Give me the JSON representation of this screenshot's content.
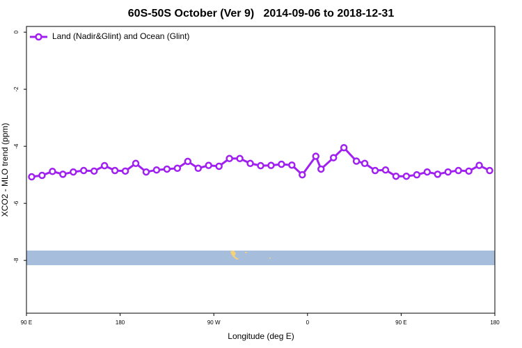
{
  "chart_data": {
    "type": "line",
    "title": "60S-50S October (Ver 9)   2014-09-06 to 2018-12-31",
    "x_label": "Longitude (deg E)",
    "y_label": "XCO2 - MLO trend (ppm)",
    "xlim": [
      90,
      540
    ],
    "ylim": [
      -9.85,
      0.2
    ],
    "xticks": [
      {
        "value": 90,
        "label": "90 E"
      },
      {
        "value": 180,
        "label": "180"
      },
      {
        "value": 270,
        "label": "90 W"
      },
      {
        "value": 360,
        "label": "0"
      },
      {
        "value": 450,
        "label": "90 E"
      },
      {
        "value": 540,
        "label": "180"
      }
    ],
    "yticks": [
      0,
      -2,
      -4,
      -6,
      -8
    ],
    "legend": "top-left",
    "x": [
      95,
      105,
      115,
      125,
      135,
      145,
      155,
      165,
      175,
      185,
      195,
      205,
      215,
      225,
      235,
      245,
      255,
      265,
      275,
      285,
      295,
      305,
      315,
      325,
      335,
      345,
      355,
      368,
      373,
      385,
      395,
      407,
      415,
      425,
      435,
      445,
      455,
      465,
      475,
      485,
      495,
      505,
      515,
      525,
      535
    ],
    "series": [
      {
        "name": "Land (Nadir&Glint) and Ocean (Glint)",
        "color": "#a020f0",
        "values": [
          -5.07,
          -5.02,
          -4.88,
          -4.98,
          -4.9,
          -4.85,
          -4.87,
          -4.68,
          -4.85,
          -4.87,
          -4.6,
          -4.9,
          -4.83,
          -4.8,
          -4.77,
          -4.53,
          -4.77,
          -4.67,
          -4.7,
          -4.43,
          -4.43,
          -4.6,
          -4.68,
          -4.67,
          -4.63,
          -4.66,
          -5.0,
          -4.35,
          -4.8,
          -4.4,
          -4.05,
          -4.52,
          -4.6,
          -4.85,
          -4.83,
          -5.05,
          -5.05,
          -5.0,
          -4.9,
          -4.98,
          -4.9,
          -4.85,
          -4.87,
          -4.67,
          -4.85
        ]
      }
    ]
  }
}
